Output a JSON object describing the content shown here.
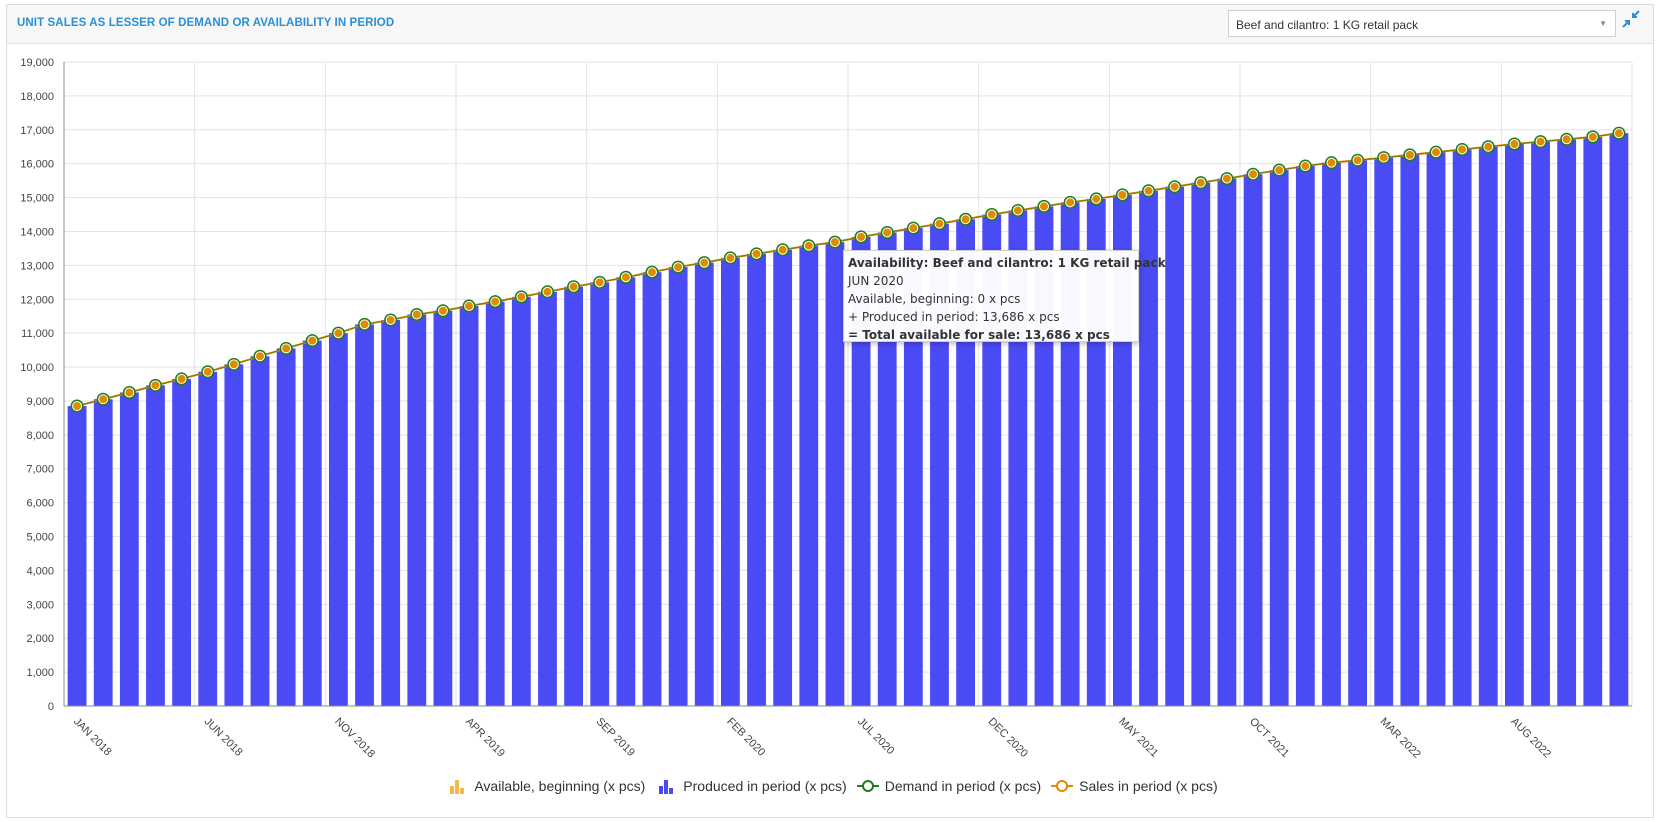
{
  "header": {
    "title": "UNIT SALES AS LESSER OF DEMAND OR AVAILABILITY IN PERIOD",
    "product_select_value": "Beef and cilantro: 1 KG retail pack",
    "collapse_icon": "collapse-arrows-icon"
  },
  "tooltip": {
    "title": "Availability: Beef and cilantro: 1 KG retail pack",
    "period": "JUN 2020",
    "line1": "Available, beginning: 0 x pcs",
    "line2": "+ Produced in period: 13,686 x pcs",
    "total": "= Total available for sale: 13,686 x pcs"
  },
  "legend": [
    {
      "label": "Available, beginning (x pcs)",
      "icon": "bar-chart-icon",
      "color": "#f5b74a"
    },
    {
      "label": "Produced in period (x pcs)",
      "icon": "bar-chart-icon",
      "color": "#4b4bf5"
    },
    {
      "label": "Demand in period (x pcs)",
      "icon": "circle-line-icon",
      "color": "#1e7b1e"
    },
    {
      "label": "Sales in period (x pcs)",
      "icon": "circle-line-icon",
      "color": "#e08a00"
    }
  ],
  "chart_data": {
    "type": "bar",
    "ylim": [
      0,
      19000
    ],
    "y_ticks": [
      "0",
      "1,000",
      "2,000",
      "3,000",
      "4,000",
      "5,000",
      "6,000",
      "7,000",
      "8,000",
      "9,000",
      "10,000",
      "11,000",
      "12,000",
      "13,000",
      "14,000",
      "15,000",
      "16,000",
      "17,000",
      "18,000",
      "19,000"
    ],
    "x_tick_labels": [
      "JAN 2018",
      "JUN 2018",
      "NOV 2018",
      "APR 2019",
      "SEP 2019",
      "FEB 2020",
      "JUL 2020",
      "DEC 2020",
      "MAY 2021",
      "OCT 2021",
      "MAR 2022",
      "AUG 2022"
    ],
    "grid": true,
    "legend_position": "bottom",
    "series": [
      {
        "name": "Available, beginning (x pcs)",
        "values": [
          0,
          0,
          0,
          0,
          0,
          0,
          0,
          0,
          0,
          0,
          0,
          0,
          0,
          0,
          0,
          0,
          0,
          0,
          0,
          0,
          0,
          0,
          0,
          0,
          0,
          0,
          0,
          0,
          0,
          0,
          0,
          0,
          0,
          0,
          0,
          0,
          0,
          0,
          0,
          0,
          0,
          0,
          0,
          0,
          0,
          0,
          0,
          0,
          0,
          0,
          0,
          0,
          0,
          0,
          0,
          0,
          0,
          0,
          0,
          0
        ]
      },
      {
        "name": "Produced in period (x pcs)",
        "values": [
          8850,
          9050,
          9250,
          9460,
          9650,
          9860,
          10080,
          10320,
          10550,
          10780,
          11000,
          11260,
          11390,
          11550,
          11660,
          11800,
          11930,
          12070,
          12220,
          12370,
          12500,
          12650,
          12800,
          12950,
          13080,
          13220,
          13340,
          13460,
          13580,
          13686,
          13840,
          13970,
          14100,
          14230,
          14360,
          14500,
          14620,
          14740,
          14860,
          14960,
          15080,
          15200,
          15320,
          15440,
          15560,
          15690,
          15810,
          15930,
          16030,
          16100,
          16180,
          16260,
          16340,
          16420,
          16500,
          16580,
          16650,
          16720,
          16790,
          16900
        ]
      },
      {
        "name": "Demand in period (x pcs)",
        "values": [
          8850,
          9050,
          9250,
          9460,
          9650,
          9860,
          10080,
          10320,
          10550,
          10780,
          11000,
          11260,
          11390,
          11550,
          11660,
          11800,
          11930,
          12070,
          12220,
          12370,
          12500,
          12650,
          12800,
          12950,
          13080,
          13220,
          13340,
          13460,
          13580,
          13686,
          13840,
          13970,
          14100,
          14230,
          14360,
          14500,
          14620,
          14740,
          14860,
          14960,
          15080,
          15200,
          15320,
          15440,
          15560,
          15690,
          15810,
          15930,
          16030,
          16100,
          16180,
          16260,
          16340,
          16420,
          16500,
          16580,
          16650,
          16720,
          16790,
          16900
        ]
      },
      {
        "name": "Sales in period (x pcs)",
        "values": [
          8850,
          9050,
          9250,
          9460,
          9650,
          9860,
          10080,
          10320,
          10550,
          10780,
          11000,
          11260,
          11390,
          11550,
          11660,
          11800,
          11930,
          12070,
          12220,
          12370,
          12500,
          12650,
          12800,
          12950,
          13080,
          13220,
          13340,
          13460,
          13580,
          13686,
          13840,
          13970,
          14100,
          14230,
          14360,
          14500,
          14620,
          14740,
          14860,
          14960,
          15080,
          15200,
          15320,
          15440,
          15560,
          15690,
          15810,
          15930,
          16030,
          16100,
          16180,
          16260,
          16340,
          16420,
          16500,
          16580,
          16650,
          16720,
          16790,
          16900
        ]
      }
    ],
    "colors": {
      "available": "#f5b74a",
      "produced": "#4b4bf5",
      "demand": "#1e7b1e",
      "sales": "#e08a00"
    }
  }
}
